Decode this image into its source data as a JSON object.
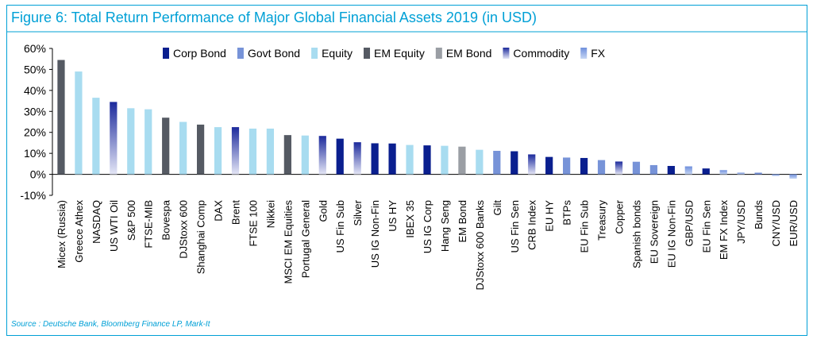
{
  "figure": {
    "title": "Figure 6: Total Return Performance of Major Global Financial Assets 2019 (in USD)",
    "source": "Source : Deutsche Bank, Bloomberg Finance LP, Mark-It"
  },
  "colors": {
    "Corp Bond": "#0a1f8f",
    "Govt Bond": "#7793d8",
    "Equity": "#a8dcf0",
    "EM Equity": "#555a63",
    "EM Bond": "#9a9ea4",
    "Commodity": [
      "#1c2a9c",
      "#e4e6f6"
    ],
    "FX": [
      "#6f8fdc",
      "#c6d6f4"
    ],
    "title": "#00a0d6",
    "frame": "#00a0d6"
  },
  "chart_data": {
    "type": "bar",
    "title": "Figure 6: Total Return Performance of Major Global Financial Assets 2019 (in USD)",
    "xlabel": "",
    "ylabel": "",
    "ylim": [
      -10,
      60
    ],
    "yticks": [
      "-10%",
      "0%",
      "10%",
      "20%",
      "30%",
      "40%",
      "50%",
      "60%"
    ],
    "grid": false,
    "legend_position": "top",
    "legend": [
      "Corp Bond",
      "Govt Bond",
      "Equity",
      "EM Equity",
      "EM Bond",
      "Commodity",
      "FX"
    ],
    "categories": [
      "Micex (Russia)",
      "Greece Athex",
      "NASDAQ",
      "US WTI Oil",
      "S&P 500",
      "FTSE-MIB",
      "Bovespa",
      "DJStoxx 600",
      "Shanghai Comp",
      "DAX",
      "Brent",
      "FTSE 100",
      "Nikkei",
      "MSCI EM Equities",
      "Portugal General",
      "Gold",
      "US Fin Sub",
      "Silver",
      "US IG Non-Fin",
      "US HY",
      "IBEX 35",
      "US IG Corp",
      "Hang Seng",
      "EM Bond",
      "DJStoxx 600 Banks",
      "Gilt",
      "US Fin Sen",
      "CRB Index",
      "EU HY",
      "BTPs",
      "EU Fin Sub",
      "Treasury",
      "Copper",
      "Spanish bonds",
      "EU Sovereign",
      "EU IG Non-Fin",
      "GBP/USD",
      "EU Fin Sen",
      "EM FX Index",
      "JPY/USD",
      "Bunds",
      "CNY/USD",
      "EUR/USD"
    ],
    "values": [
      54.5,
      49,
      36.5,
      34.5,
      31.5,
      31,
      27,
      25,
      23.7,
      22.5,
      22.5,
      21.8,
      21.8,
      18.7,
      18.5,
      18.3,
      17,
      15.3,
      14.8,
      14.7,
      14,
      13.8,
      13.6,
      13.2,
      11.7,
      11.2,
      11,
      9.5,
      8.3,
      8,
      7.8,
      6.8,
      6.1,
      6,
      4.4,
      4,
      3.8,
      2.8,
      2,
      0.8,
      0.8,
      -0.8,
      -2.1
    ],
    "types": [
      "EM Equity",
      "Equity",
      "Equity",
      "Commodity",
      "Equity",
      "Equity",
      "EM Equity",
      "Equity",
      "EM Equity",
      "Equity",
      "Commodity",
      "Equity",
      "Equity",
      "EM Equity",
      "Equity",
      "Commodity",
      "Corp Bond",
      "Commodity",
      "Corp Bond",
      "Corp Bond",
      "Equity",
      "Corp Bond",
      "Equity",
      "EM Bond",
      "Equity",
      "Govt Bond",
      "Corp Bond",
      "Commodity",
      "Corp Bond",
      "Govt Bond",
      "Corp Bond",
      "Govt Bond",
      "Commodity",
      "Govt Bond",
      "Govt Bond",
      "Corp Bond",
      "FX",
      "Corp Bond",
      "FX",
      "FX",
      "Govt Bond",
      "FX",
      "FX"
    ]
  }
}
